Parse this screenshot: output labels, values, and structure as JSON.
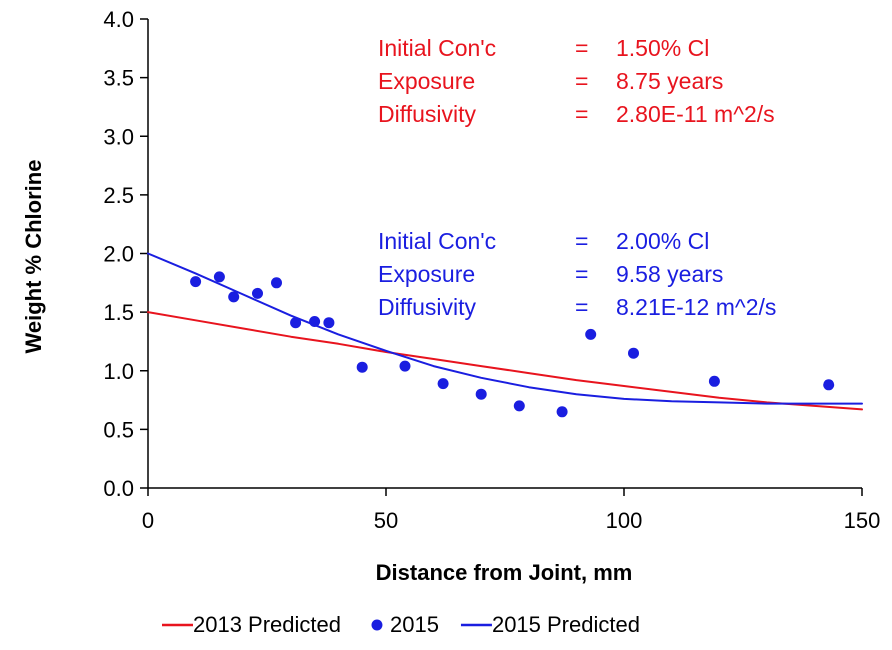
{
  "chart_data": {
    "type": "scatter",
    "xlabel": "Distance from Joint, mm",
    "ylabel": "Weight % Chlorine",
    "xlim": [
      0,
      150
    ],
    "ylim": [
      0,
      4.0
    ],
    "xticks": [
      0,
      50,
      100,
      150
    ],
    "yticks": [
      0.0,
      0.5,
      1.0,
      1.5,
      2.0,
      2.5,
      3.0,
      3.5,
      4.0
    ],
    "xtick_labels": [
      "0",
      "50",
      "100",
      "150"
    ],
    "ytick_labels": [
      "0.0",
      "0.5",
      "1.0",
      "1.5",
      "2.0",
      "2.5",
      "3.0",
      "3.5",
      "4.0"
    ],
    "grid": false,
    "legend_position": "bottom",
    "series": [
      {
        "name": "2013 Predicted",
        "kind": "line",
        "color": "#e8141e",
        "x": [
          0,
          10,
          20,
          30,
          40,
          50,
          60,
          70,
          80,
          90,
          100,
          110,
          120,
          130,
          140,
          150
        ],
        "y": [
          1.5,
          1.43,
          1.36,
          1.29,
          1.23,
          1.16,
          1.1,
          1.04,
          0.98,
          0.92,
          0.87,
          0.82,
          0.77,
          0.73,
          0.7,
          0.67
        ]
      },
      {
        "name": "2015",
        "kind": "scatter",
        "color": "#1a1ee0",
        "x": [
          10,
          15,
          18,
          23,
          27,
          31,
          35,
          38,
          45,
          54,
          62,
          70,
          78,
          87,
          93,
          102,
          119,
          143
        ],
        "y": [
          1.76,
          1.8,
          1.63,
          1.66,
          1.75,
          1.41,
          1.42,
          1.41,
          1.03,
          1.04,
          0.89,
          0.8,
          0.7,
          0.65,
          1.31,
          1.15,
          0.91,
          0.88
        ]
      },
      {
        "name": "2015 Predicted",
        "kind": "line",
        "color": "#1a1ee0",
        "x": [
          0,
          10,
          20,
          30,
          40,
          50,
          60,
          70,
          80,
          90,
          100,
          110,
          120,
          130,
          140,
          150
        ],
        "y": [
          2.0,
          1.83,
          1.65,
          1.47,
          1.31,
          1.17,
          1.04,
          0.94,
          0.86,
          0.8,
          0.76,
          0.74,
          0.73,
          0.72,
          0.72,
          0.72
        ]
      }
    ],
    "annotations": [
      {
        "color": "#e8141e",
        "lines": [
          {
            "label": "Initial Con'c",
            "eq": "=",
            "value": "1.50% Cl"
          },
          {
            "label": "Exposure",
            "eq": "=",
            "value": "8.75 years"
          },
          {
            "label": "Diffusivity",
            "eq": "=",
            "value": "2.80E-11 m^2/s"
          }
        ]
      },
      {
        "color": "#1a1ee0",
        "lines": [
          {
            "label": "Initial Con'c",
            "eq": "=",
            "value": "2.00% Cl"
          },
          {
            "label": "Exposure",
            "eq": "=",
            "value": "9.58 years"
          },
          {
            "label": "Diffusivity",
            "eq": "=",
            "value": "8.21E-12 m^2/s"
          }
        ]
      }
    ]
  }
}
